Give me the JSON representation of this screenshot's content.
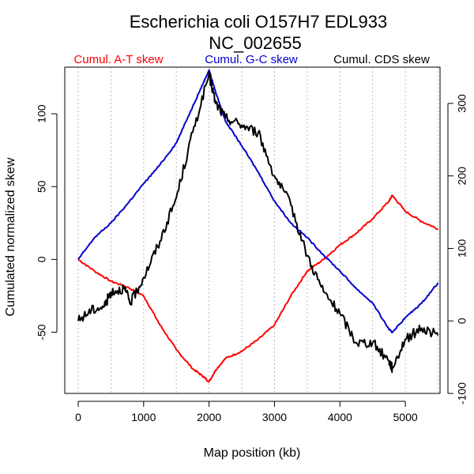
{
  "chart_data": {
    "type": "line",
    "title": [
      "Escherichia coli O157H7 EDL933",
      "NC_002655"
    ],
    "xlabel": "Map position (kb)",
    "ylabel": "Cumulated normalized skew",
    "xlim": [
      0,
      5530
    ],
    "ylim_left": [
      -92,
      132
    ],
    "ylim_right": [
      -100,
      350
    ],
    "x_ticks": [
      0,
      1000,
      2000,
      3000,
      4000,
      5000
    ],
    "y_ticks_left": [
      -50,
      0,
      50,
      100
    ],
    "y_ticks_right": [
      -100,
      0,
      100,
      200,
      300
    ],
    "grid_x": [
      0,
      500,
      1000,
      1500,
      2000,
      2500,
      3000,
      3500,
      4000,
      4500,
      5000,
      5500
    ],
    "series": [
      {
        "name": "Cumul. A-T skew",
        "color": "#ff0000",
        "axis": "left",
        "x": [
          0,
          250,
          500,
          750,
          1000,
          1250,
          1500,
          1750,
          1900,
          2000,
          2100,
          2250,
          2500,
          2750,
          3000,
          3250,
          3500,
          3750,
          4000,
          4250,
          4500,
          4750,
          4800,
          5000,
          5250,
          5500
        ],
        "y": [
          0,
          -8,
          -15,
          -19,
          -25,
          -45,
          -62,
          -75,
          -80,
          -84,
          -76,
          -68,
          -63,
          -55,
          -45,
          -25,
          -8,
          0,
          10,
          18,
          28,
          40,
          44,
          33,
          26,
          21
        ]
      },
      {
        "name": "Cumul. G-C skew",
        "color": "#0000cc",
        "axis": "left",
        "x": [
          0,
          250,
          500,
          750,
          1000,
          1250,
          1500,
          1750,
          1900,
          2000,
          2100,
          2250,
          2500,
          2750,
          3000,
          3250,
          3500,
          3750,
          4000,
          4250,
          4500,
          4750,
          4800,
          5000,
          5250,
          5500
        ],
        "y": [
          0,
          15,
          25,
          38,
          52,
          65,
          80,
          105,
          120,
          130,
          115,
          95,
          78,
          60,
          40,
          25,
          15,
          3,
          -8,
          -20,
          -30,
          -48,
          -50,
          -40,
          -30,
          -16
        ]
      },
      {
        "name": "Cumul. CDS skew",
        "color": "#000000",
        "axis": "right",
        "x": [
          0,
          200,
          400,
          500,
          700,
          800,
          1000,
          1250,
          1500,
          1750,
          2000,
          2100,
          2250,
          2500,
          2750,
          3000,
          3250,
          3500,
          3750,
          4000,
          4250,
          4500,
          4750,
          4800,
          5000,
          5250,
          5500
        ],
        "y": [
          0,
          15,
          20,
          40,
          45,
          25,
          60,
          110,
          170,
          260,
          340,
          300,
          280,
          270,
          260,
          200,
          160,
          90,
          40,
          10,
          -30,
          -30,
          -55,
          -65,
          -25,
          -10,
          -20
        ]
      }
    ],
    "legend_position": "top"
  }
}
